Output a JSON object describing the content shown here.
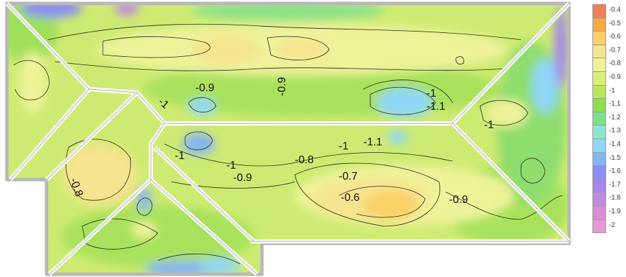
{
  "chart_data": {
    "type": "heatmap",
    "subtype": "filled contour plot of roof pressure coefficients",
    "title": "",
    "xlabel": "",
    "ylabel": "",
    "colorbar": {
      "position": "right",
      "levels": [
        "-0.4",
        "-0.5",
        "-0.6",
        "-0.7",
        "-0.8",
        "-0.9",
        "-1",
        "-1.1",
        "-1.2",
        "-1.3",
        "-1.4",
        "-1.5",
        "-1.6",
        "-1.7",
        "-1.8",
        "-1.9",
        "-2"
      ],
      "colors": [
        "#f0805a",
        "#f7a944",
        "#fbd167",
        "#f6e48e",
        "#eef39a",
        "#d9ef7a",
        "#b7e75b",
        "#8fdd4e",
        "#7fe08a",
        "#8ee6cf",
        "#8fd7f5",
        "#87b5f2",
        "#8a8ef0",
        "#a487ea",
        "#c08ae2",
        "#d88fd6",
        "#e69ad3"
      ]
    },
    "contour_labels": [
      {
        "text": "-0.9",
        "region": "upper roof, center-left"
      },
      {
        "text": "-0.9",
        "region": "upper roof, center (vertical)"
      },
      {
        "text": "-1",
        "region": "upper roof, left"
      },
      {
        "text": "-1",
        "region": "upper roof, right"
      },
      {
        "text": "-1.1",
        "region": "upper roof, right"
      },
      {
        "text": "-1",
        "region": "right hip panel"
      },
      {
        "text": "-1",
        "region": "lower roof, left"
      },
      {
        "text": "-1",
        "region": "lower roof, center-left"
      },
      {
        "text": "-0.9",
        "region": "lower roof, center-left"
      },
      {
        "text": "-0.8",
        "region": "lower roof, center"
      },
      {
        "text": "-1",
        "region": "lower roof, center"
      },
      {
        "text": "-1.1",
        "region": "lower roof, center-right"
      },
      {
        "text": "-0.7",
        "region": "lower roof, center"
      },
      {
        "text": "-0.6",
        "region": "lower roof, center"
      },
      {
        "text": "-0.9",
        "region": "lower roof, right"
      },
      {
        "text": "-0.8",
        "region": "left wing panel"
      }
    ],
    "grid": false,
    "legend": "right"
  }
}
